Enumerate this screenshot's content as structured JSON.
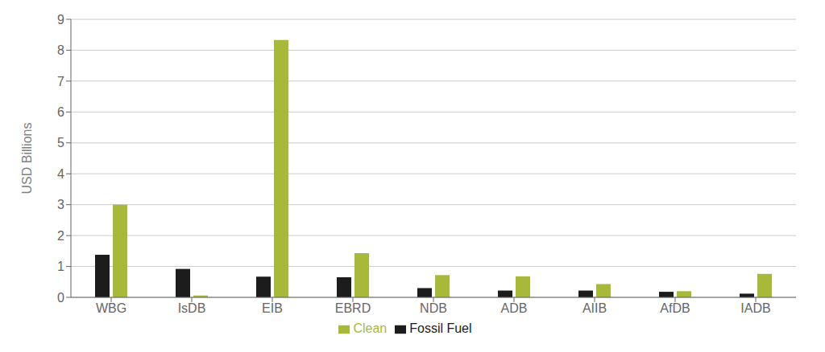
{
  "chart_data": {
    "type": "bar",
    "categories": [
      "WBG",
      "IsDB",
      "EIB",
      "EBRD",
      "NDB",
      "ADB",
      "AIIB",
      "AfDB",
      "IADB"
    ],
    "series": [
      {
        "name": "Fossil Fuel",
        "color": "#1c1c1c",
        "values": [
          1.38,
          0.92,
          0.67,
          0.65,
          0.3,
          0.22,
          0.22,
          0.18,
          0.12
        ]
      },
      {
        "name": "Clean",
        "color": "#a8b83a",
        "values": [
          3.0,
          0.06,
          8.33,
          1.43,
          0.72,
          0.68,
          0.43,
          0.2,
          0.76
        ]
      }
    ],
    "ylabel": "USD Billions",
    "ylim": [
      0,
      9
    ],
    "yticks": [
      0,
      1,
      2,
      3,
      4,
      5,
      6,
      7,
      8,
      9
    ],
    "grid": true,
    "legend": "bottom"
  }
}
